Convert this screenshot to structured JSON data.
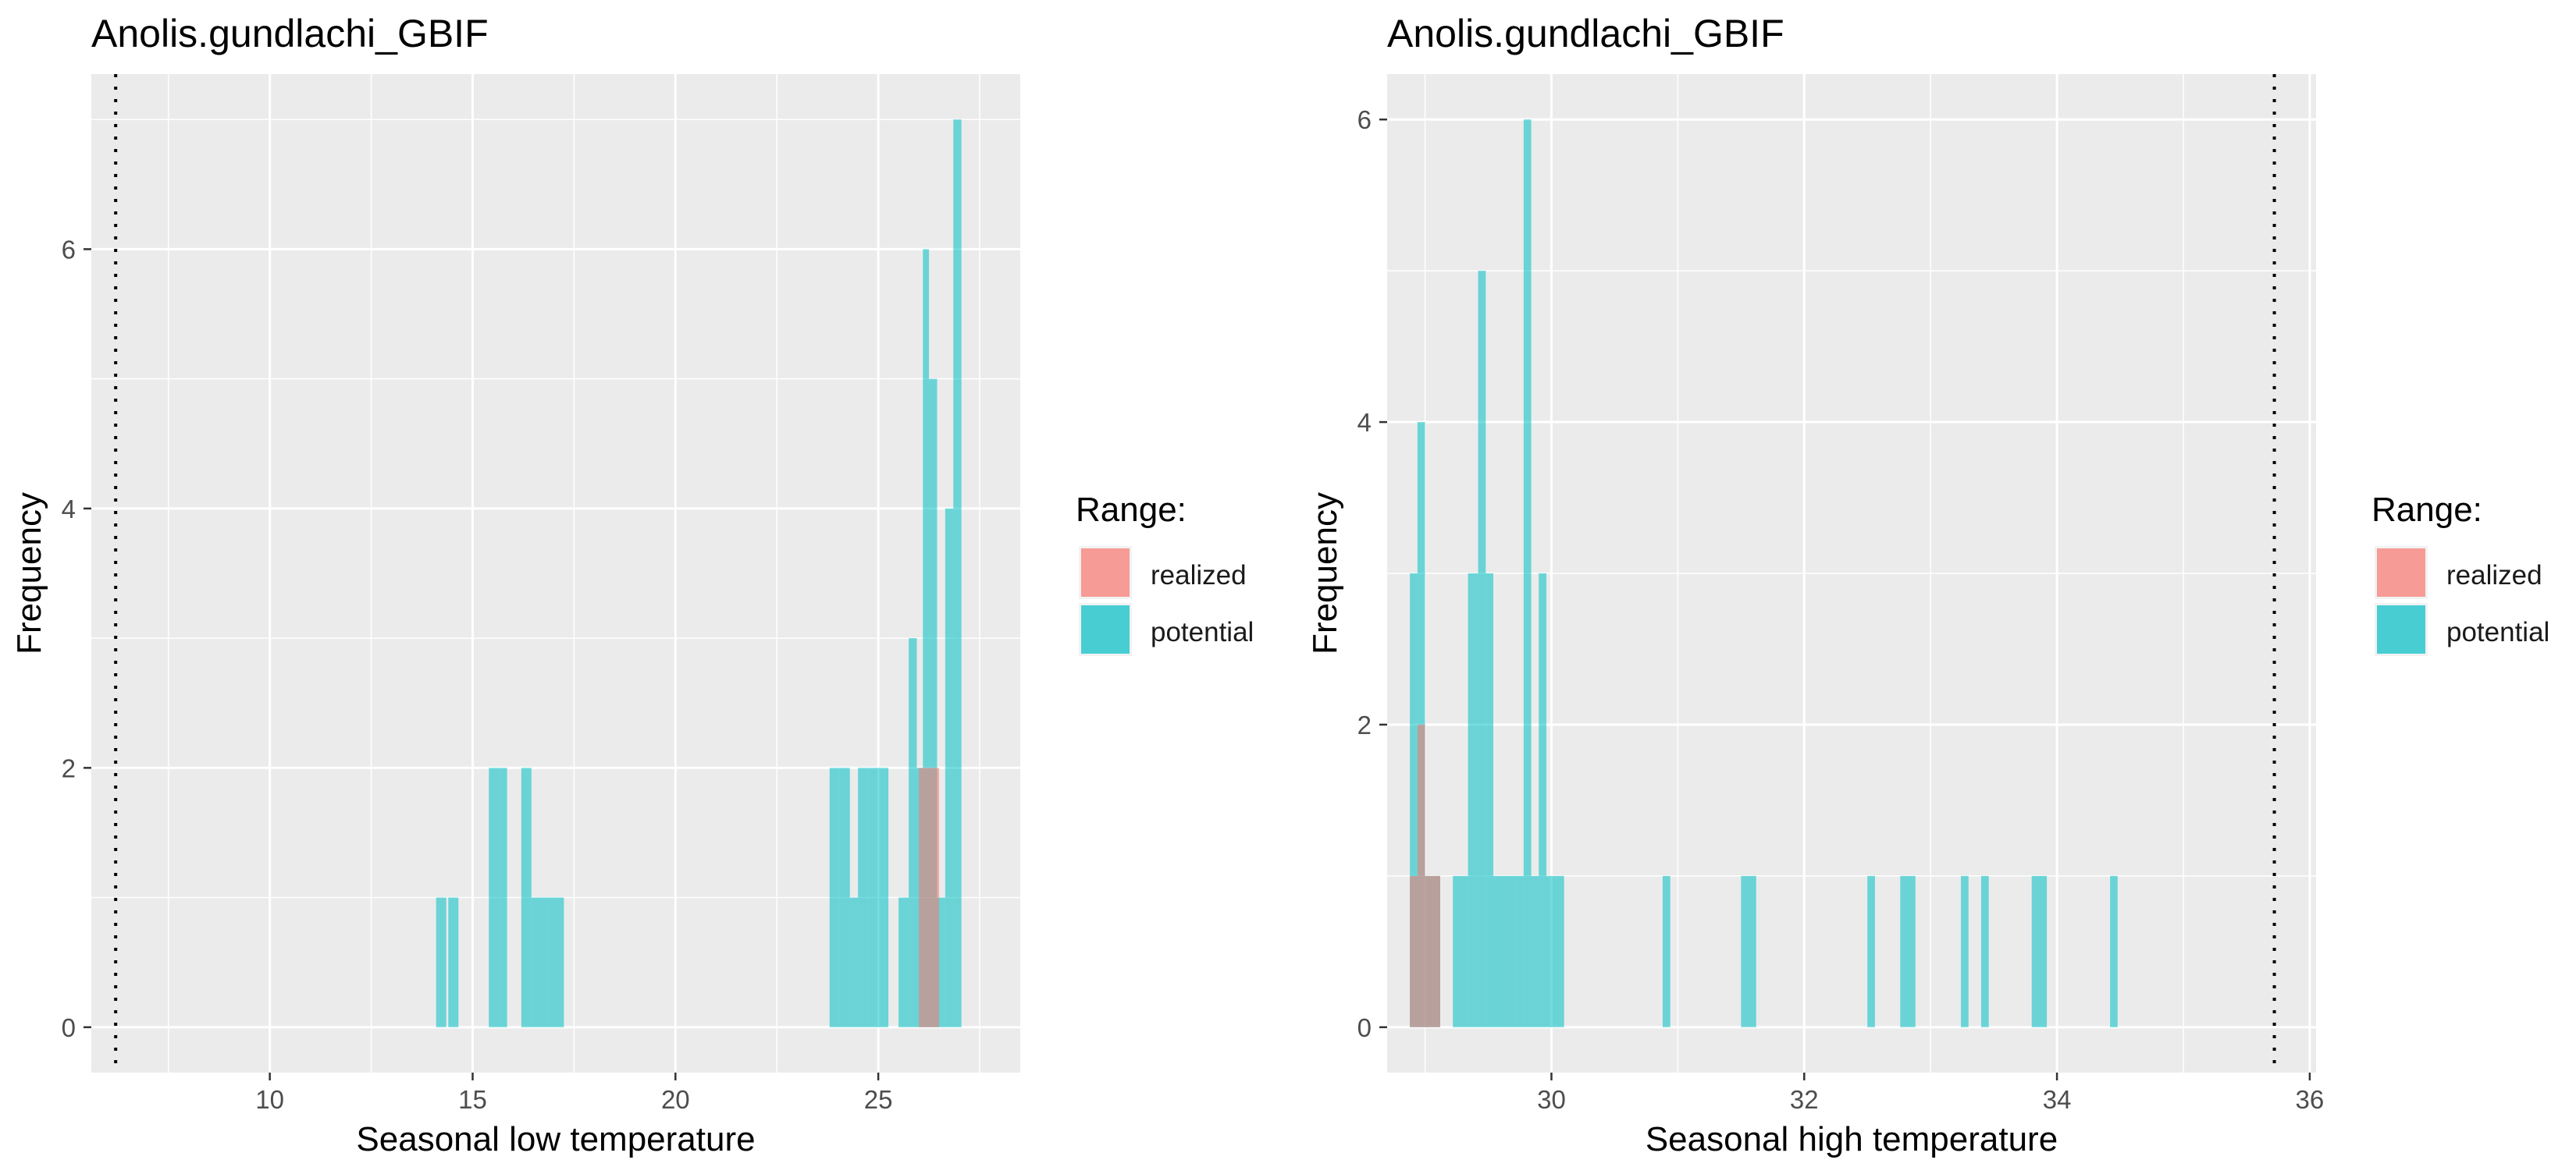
{
  "legend": {
    "title": "Range:",
    "items": [
      {
        "label": "realized",
        "color": "#F8766D"
      },
      {
        "label": "potential",
        "color": "#00BFC4"
      }
    ]
  },
  "chart_data": [
    {
      "type": "bar",
      "title": "Anolis.gundlachi_GBIF",
      "xlabel": "Seasonal low temperature",
      "ylabel": "Frequency",
      "xlim": [
        5.6,
        28.5
      ],
      "ylim": [
        -0.35,
        7.35
      ],
      "xticks": [
        10,
        15,
        20,
        25
      ],
      "yticks": [
        0,
        2,
        4,
        6
      ],
      "grid": true,
      "legend_position": "right",
      "bin_width": 0.25,
      "vline": {
        "x": 6.2,
        "style": "dotted"
      },
      "series": [
        {
          "name": "realized",
          "color": "#F8766D",
          "bins": [
            [
              26.0,
              26.25,
              2
            ],
            [
              26.25,
              26.5,
              2
            ]
          ]
        },
        {
          "name": "potential",
          "color": "#00BFC4",
          "bins": [
            [
              14.1,
              14.35,
              1
            ],
            [
              14.4,
              14.65,
              1
            ],
            [
              15.4,
              15.65,
              2
            ],
            [
              15.65,
              15.85,
              2
            ],
            [
              16.2,
              16.45,
              2
            ],
            [
              16.45,
              16.85,
              1
            ],
            [
              16.85,
              17.25,
              1
            ],
            [
              23.8,
              24.05,
              2
            ],
            [
              24.05,
              24.3,
              2
            ],
            [
              24.3,
              24.5,
              1
            ],
            [
              24.5,
              24.75,
              2
            ],
            [
              24.75,
              25.0,
              2
            ],
            [
              25.0,
              25.25,
              2
            ],
            [
              25.5,
              25.75,
              1
            ],
            [
              25.75,
              25.95,
              3
            ],
            [
              25.95,
              26.1,
              2
            ],
            [
              26.1,
              26.25,
              6
            ],
            [
              26.25,
              26.45,
              5
            ],
            [
              26.45,
              26.65,
              1
            ],
            [
              26.65,
              26.85,
              4
            ],
            [
              26.85,
              27.05,
              7
            ]
          ]
        }
      ]
    },
    {
      "type": "bar",
      "title": "Anolis.gundlachi_GBIF",
      "xlabel": "Seasonal high temperature",
      "ylabel": "Frequency",
      "xlim": [
        28.7,
        36.05
      ],
      "ylim": [
        -0.3,
        6.3
      ],
      "xticks": [
        30,
        32,
        34,
        36
      ],
      "yticks": [
        0,
        2,
        4,
        6
      ],
      "grid": true,
      "legend_position": "right",
      "bin_width": 0.06,
      "vline": {
        "x": 35.72,
        "style": "dotted"
      },
      "series": [
        {
          "name": "realized",
          "color": "#F8766D",
          "bins": [
            [
              28.88,
              28.94,
              1
            ],
            [
              28.94,
              29.0,
              2
            ],
            [
              29.0,
              29.12,
              1
            ]
          ]
        },
        {
          "name": "potential",
          "color": "#00BFC4",
          "bins": [
            [
              28.88,
              28.94,
              3
            ],
            [
              28.94,
              29.0,
              4
            ],
            [
              29.0,
              29.06,
              1
            ],
            [
              29.06,
              29.12,
              1
            ],
            [
              29.22,
              29.34,
              1
            ],
            [
              29.34,
              29.42,
              3
            ],
            [
              29.42,
              29.48,
              5
            ],
            [
              29.48,
              29.54,
              3
            ],
            [
              29.54,
              29.72,
              1
            ],
            [
              29.72,
              29.78,
              1
            ],
            [
              29.78,
              29.84,
              6
            ],
            [
              29.84,
              29.9,
              1
            ],
            [
              29.9,
              29.96,
              3
            ],
            [
              29.96,
              30.1,
              1
            ],
            [
              30.88,
              30.94,
              1
            ],
            [
              31.5,
              31.62,
              1
            ],
            [
              32.5,
              32.56,
              1
            ],
            [
              32.76,
              32.88,
              1
            ],
            [
              33.24,
              33.3,
              1
            ],
            [
              33.4,
              33.46,
              1
            ],
            [
              33.8,
              33.92,
              1
            ],
            [
              34.42,
              34.48,
              1
            ]
          ]
        }
      ]
    }
  ]
}
